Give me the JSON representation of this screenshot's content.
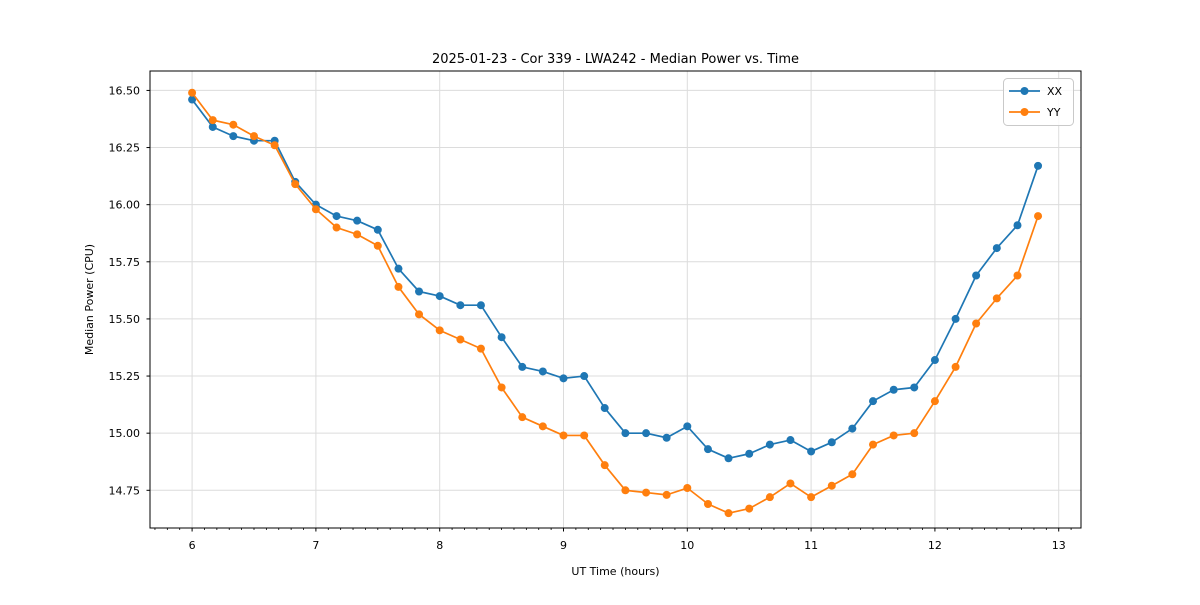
{
  "figure": {
    "title": "2025-01-23 - Cor 339 - LWA242 - Median Power vs. Time"
  },
  "chart_data": {
    "type": "line",
    "title": "2025-01-23 - Cor 339 - LWA242 - Median Power vs. Time",
    "xlabel": "UT Time (hours)",
    "ylabel": "Median Power (CPU)",
    "xlim": [
      5.66,
      13.18
    ],
    "ylim": [
      14.585,
      16.585
    ],
    "grid": true,
    "legend_position": "upper right",
    "grid_color": "#dcdcdc",
    "spine_color": "#000000",
    "xticks": {
      "values": [
        6,
        7,
        8,
        9,
        10,
        11,
        12,
        13
      ],
      "labels": [
        "6",
        "7",
        "8",
        "9",
        "10",
        "11",
        "12",
        "13"
      ]
    },
    "x_minor_tick_step": 0.1,
    "yticks": {
      "values": [
        14.75,
        15.0,
        15.25,
        15.5,
        15.75,
        16.0,
        16.25,
        16.5
      ],
      "labels": [
        "14.75",
        "15.00",
        "15.25",
        "15.50",
        "15.75",
        "16.00",
        "16.25",
        "16.50"
      ]
    },
    "x": [
      6.0,
      6.167,
      6.333,
      6.5,
      6.667,
      6.833,
      7.0,
      7.167,
      7.333,
      7.5,
      7.667,
      7.833,
      8.0,
      8.167,
      8.333,
      8.5,
      8.667,
      8.833,
      9.0,
      9.167,
      9.333,
      9.5,
      9.667,
      9.833,
      10.0,
      10.167,
      10.333,
      10.5,
      10.667,
      10.833,
      11.0,
      11.167,
      11.333,
      11.5,
      11.667,
      11.833,
      12.0,
      12.167,
      12.333,
      12.5,
      12.667,
      12.833
    ],
    "series": [
      {
        "name": "XX",
        "color": "#1f77b4",
        "values": [
          16.46,
          16.34,
          16.3,
          16.28,
          16.28,
          16.1,
          16.0,
          15.95,
          15.93,
          15.89,
          15.72,
          15.62,
          15.6,
          15.56,
          15.56,
          15.42,
          15.29,
          15.27,
          15.24,
          15.25,
          15.11,
          15.0,
          15.0,
          14.98,
          15.03,
          14.93,
          14.89,
          14.91,
          14.95,
          14.97,
          14.92,
          14.96,
          15.02,
          15.14,
          15.19,
          15.2,
          15.32,
          15.5,
          15.69,
          15.81,
          15.91,
          16.17
        ]
      },
      {
        "name": "YY",
        "color": "#ff7f0e",
        "values": [
          16.49,
          16.37,
          16.35,
          16.3,
          16.26,
          16.09,
          15.98,
          15.9,
          15.87,
          15.82,
          15.64,
          15.52,
          15.45,
          15.41,
          15.37,
          15.2,
          15.07,
          15.03,
          14.99,
          14.99,
          14.86,
          14.75,
          14.74,
          14.73,
          14.76,
          14.69,
          14.65,
          14.67,
          14.72,
          14.78,
          14.72,
          14.77,
          14.82,
          14.95,
          14.99,
          15.0,
          15.14,
          15.29,
          15.48,
          15.59,
          15.69,
          15.95
        ]
      }
    ]
  }
}
